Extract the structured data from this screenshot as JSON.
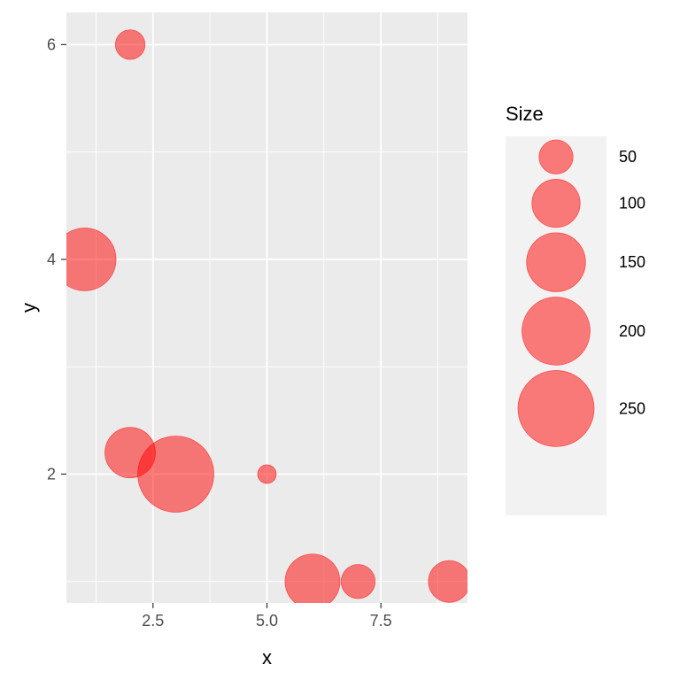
{
  "chart_data": {
    "type": "scatter",
    "title": "",
    "xlabel": "x",
    "ylabel": "y",
    "xlim": [
      0.6,
      9.4
    ],
    "ylim": [
      0.8,
      6.3
    ],
    "xticks": [
      2.5,
      5.0,
      7.5
    ],
    "xtick_labels": [
      "2.5",
      "5.0",
      "7.5"
    ],
    "yticks": [
      2,
      4,
      6
    ],
    "ytick_labels": [
      "2",
      "4",
      "6"
    ],
    "x_minor_ticks": [
      1.25,
      3.75,
      6.25,
      8.75
    ],
    "y_minor_ticks": [
      1,
      3,
      5
    ],
    "grid": true,
    "point_color": "#F8766D",
    "point_fill": "#FF0000",
    "point_alpha": 0.5,
    "panel_background": "#EBEBEB",
    "legend_background": "#F2F2F2",
    "legend_position": "right",
    "legend": {
      "title": "Size",
      "entries": [
        {
          "value": 50,
          "label": "50"
        },
        {
          "value": 100,
          "label": "100"
        },
        {
          "value": 150,
          "label": "150"
        },
        {
          "value": 200,
          "label": "200"
        },
        {
          "value": 250,
          "label": "250"
        }
      ]
    },
    "points": [
      {
        "x": 2,
        "y": 6,
        "size": 38
      },
      {
        "x": 1,
        "y": 4,
        "size": 170
      },
      {
        "x": 2,
        "y": 2.2,
        "size": 110
      },
      {
        "x": 3,
        "y": 2,
        "size": 250
      },
      {
        "x": 5,
        "y": 2,
        "size": 15
      },
      {
        "x": 6,
        "y": 1,
        "size": 130
      },
      {
        "x": 7,
        "y": 1,
        "size": 50
      },
      {
        "x": 9,
        "y": 1,
        "size": 75
      }
    ]
  }
}
